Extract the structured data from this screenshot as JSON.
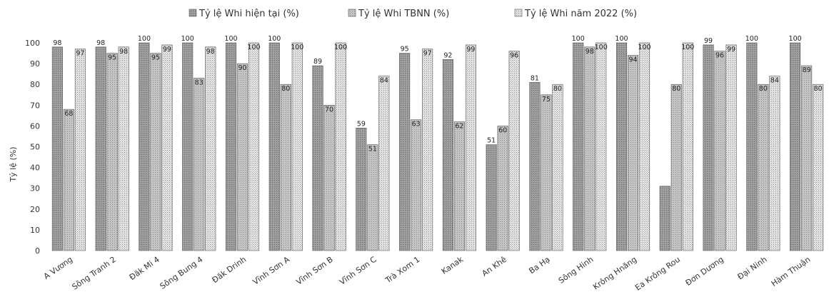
{
  "chart_data": {
    "type": "bar",
    "ylabel": "Tỷ lệ (%)",
    "ylim": [
      0,
      100
    ],
    "yticks": [
      0,
      10,
      20,
      30,
      40,
      50,
      60,
      70,
      80,
      90,
      100
    ],
    "legend_position": "top-center",
    "grid": false,
    "categories": [
      "A Vương",
      "Sông Tranh 2",
      "Đăk Mi 4",
      "Sông Bung 4",
      "Đăk Drinh",
      "Vĩnh Sơn A",
      "Vĩnh Sơn B",
      "Vĩnh Sơn C",
      "Trà Xom 1",
      "Kanak",
      "An Khê",
      "Ba Hạ",
      "Sông Hinh",
      "Krông Hnăng",
      "Ea Krông Rou",
      "Đơn Dương",
      "Đại Ninh",
      "Hàm Thuận"
    ],
    "series": [
      {
        "name": "Tỷ lệ Whi hiện tại (%)",
        "color": "#8a8a8a",
        "values": [
          98,
          98,
          100,
          100,
          100,
          100,
          89,
          59,
          95,
          92,
          51,
          81,
          100,
          100,
          31,
          99,
          100,
          100
        ]
      },
      {
        "name": "Tỷ lệ Whi TBNN (%)",
        "color": "#b5b5b5",
        "values": [
          68,
          95,
          95,
          83,
          90,
          80,
          70,
          51,
          63,
          62,
          60,
          75,
          98,
          94,
          80,
          96,
          80,
          89
        ]
      },
      {
        "name": "Tỷ lệ Whi năm 2022 (%)",
        "color": "#d6d6d6",
        "values": [
          97,
          98,
          99,
          98,
          100,
          100,
          100,
          84,
          97,
          99,
          96,
          80,
          100,
          100,
          100,
          99,
          84,
          80
        ]
      }
    ],
    "data_labels": [
      [
        "98",
        "68",
        "97"
      ],
      [
        "98",
        "95",
        "98"
      ],
      [
        "100",
        "95",
        "99"
      ],
      [
        "100",
        "83",
        "98"
      ],
      [
        "100",
        "90",
        "100"
      ],
      [
        "100",
        "80",
        "100"
      ],
      [
        "89",
        "70",
        "100"
      ],
      [
        "59",
        "51",
        "84"
      ],
      [
        "95",
        "63",
        "97"
      ],
      [
        "92",
        "62",
        "99"
      ],
      [
        "51",
        "60",
        "96"
      ],
      [
        "81",
        "75",
        "80"
      ],
      [
        "100",
        "98",
        "100"
      ],
      [
        "100",
        "94",
        "100"
      ],
      [
        "",
        "80",
        "100"
      ],
      [
        "99",
        "96",
        "99"
      ],
      [
        "100",
        "80",
        "84"
      ],
      [
        "100",
        "89",
        "80"
      ]
    ]
  }
}
